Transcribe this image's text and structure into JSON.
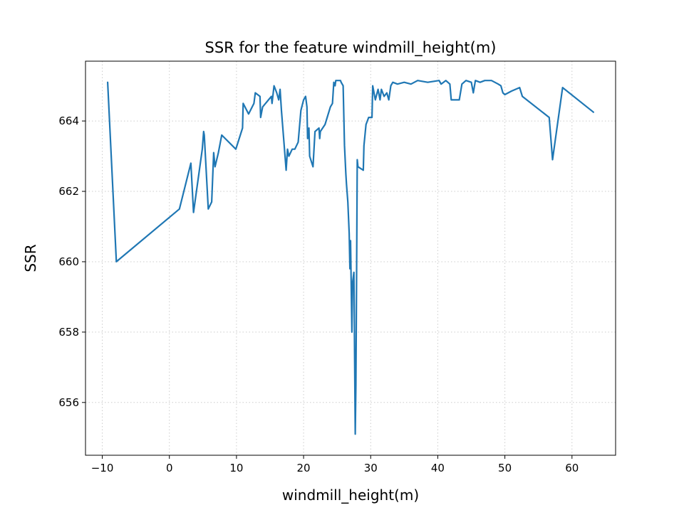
{
  "chart_data": {
    "type": "line",
    "title": "SSR for the feature windmill_height(m)",
    "xlabel": "windmill_height(m)",
    "ylabel": "SSR",
    "xlim": [
      -12.5,
      66.5
    ],
    "ylim": [
      654.5,
      665.7
    ],
    "xticks": [
      -10,
      0,
      10,
      20,
      30,
      40,
      50,
      60
    ],
    "xtick_labels": [
      "−10",
      "0",
      "10",
      "20",
      "30",
      "40",
      "50",
      "60"
    ],
    "yticks": [
      656,
      658,
      660,
      662,
      664
    ],
    "ytick_labels": [
      "656",
      "658",
      "660",
      "662",
      "664"
    ],
    "grid": true,
    "colors": {
      "line": "#1f77b4",
      "grid": "#cccccc",
      "axes": "#000000"
    },
    "series": [
      {
        "points": [
          [
            -9.2,
            665.1
          ],
          [
            -7.9,
            660.0
          ],
          [
            1.5,
            661.5
          ],
          [
            3.2,
            662.8
          ],
          [
            3.6,
            661.4
          ],
          [
            4.9,
            663.2
          ],
          [
            5.1,
            663.7
          ],
          [
            5.2,
            663.6
          ],
          [
            5.8,
            661.5
          ],
          [
            6.3,
            661.7
          ],
          [
            6.6,
            663.1
          ],
          [
            6.8,
            662.7
          ],
          [
            7.3,
            663.1
          ],
          [
            7.8,
            663.6
          ],
          [
            9.9,
            663.2
          ],
          [
            10.9,
            663.8
          ],
          [
            11.0,
            664.5
          ],
          [
            11.8,
            664.2
          ],
          [
            12.6,
            664.5
          ],
          [
            12.8,
            664.8
          ],
          [
            13.5,
            664.7
          ],
          [
            13.6,
            664.1
          ],
          [
            13.9,
            664.4
          ],
          [
            15.2,
            664.7
          ],
          [
            15.3,
            664.5
          ],
          [
            15.6,
            665.0
          ],
          [
            16.0,
            664.8
          ],
          [
            16.3,
            664.6
          ],
          [
            16.5,
            664.9
          ],
          [
            16.7,
            664.3
          ],
          [
            17.4,
            662.6
          ],
          [
            17.6,
            663.2
          ],
          [
            17.8,
            663.0
          ],
          [
            18.3,
            663.2
          ],
          [
            18.7,
            663.2
          ],
          [
            19.2,
            663.4
          ],
          [
            19.6,
            664.3
          ],
          [
            20.0,
            664.6
          ],
          [
            20.3,
            664.7
          ],
          [
            20.5,
            664.4
          ],
          [
            20.6,
            663.5
          ],
          [
            20.8,
            663.8
          ],
          [
            20.9,
            663.0
          ],
          [
            21.4,
            662.7
          ],
          [
            21.7,
            663.7
          ],
          [
            22.3,
            663.8
          ],
          [
            22.4,
            663.5
          ],
          [
            22.5,
            663.7
          ],
          [
            23.2,
            663.9
          ],
          [
            24.0,
            664.4
          ],
          [
            24.3,
            664.5
          ],
          [
            24.5,
            665.1
          ],
          [
            24.7,
            665.0
          ],
          [
            24.8,
            665.15
          ],
          [
            25.5,
            665.15
          ],
          [
            25.6,
            665.1
          ],
          [
            25.9,
            665.0
          ],
          [
            26.1,
            663.3
          ],
          [
            26.3,
            662.5
          ],
          [
            26.4,
            662.2
          ],
          [
            26.6,
            661.7
          ],
          [
            26.8,
            660.8
          ],
          [
            26.9,
            659.8
          ],
          [
            27.0,
            660.6
          ],
          [
            27.2,
            658.0
          ],
          [
            27.3,
            659.4
          ],
          [
            27.5,
            659.7
          ],
          [
            27.6,
            657.3
          ],
          [
            27.7,
            655.1
          ],
          [
            27.8,
            656.5
          ],
          [
            27.9,
            659.7
          ],
          [
            28.0,
            662.9
          ],
          [
            28.1,
            662.7
          ],
          [
            28.9,
            662.6
          ],
          [
            29.0,
            663.3
          ],
          [
            29.3,
            663.9
          ],
          [
            29.7,
            664.1
          ],
          [
            30.2,
            664.1
          ],
          [
            30.3,
            665.0
          ],
          [
            30.7,
            664.6
          ],
          [
            31.1,
            664.9
          ],
          [
            31.4,
            664.6
          ],
          [
            31.6,
            664.9
          ],
          [
            32.0,
            664.7
          ],
          [
            32.4,
            664.8
          ],
          [
            32.7,
            664.6
          ],
          [
            33.0,
            665.0
          ],
          [
            33.3,
            665.1
          ],
          [
            34.0,
            665.05
          ],
          [
            35.0,
            665.1
          ],
          [
            36.0,
            665.05
          ],
          [
            37.0,
            665.15
          ],
          [
            38.5,
            665.1
          ],
          [
            40.2,
            665.15
          ],
          [
            40.5,
            665.05
          ],
          [
            41.2,
            665.15
          ],
          [
            41.8,
            665.05
          ],
          [
            42.0,
            664.6
          ],
          [
            42.6,
            664.6
          ],
          [
            42.9,
            664.6
          ],
          [
            43.2,
            664.6
          ],
          [
            43.6,
            665.05
          ],
          [
            44.2,
            665.15
          ],
          [
            45.0,
            665.1
          ],
          [
            45.3,
            664.8
          ],
          [
            45.6,
            665.15
          ],
          [
            46.3,
            665.1
          ],
          [
            47.0,
            665.15
          ],
          [
            48.0,
            665.15
          ],
          [
            49.0,
            665.05
          ],
          [
            49.4,
            665.0
          ],
          [
            49.7,
            664.8
          ],
          [
            50.0,
            664.75
          ],
          [
            51.0,
            664.85
          ],
          [
            52.2,
            664.95
          ],
          [
            52.6,
            664.7
          ],
          [
            56.6,
            664.1
          ],
          [
            57.1,
            662.9
          ],
          [
            58.6,
            664.95
          ],
          [
            63.2,
            664.25
          ]
        ]
      }
    ]
  }
}
